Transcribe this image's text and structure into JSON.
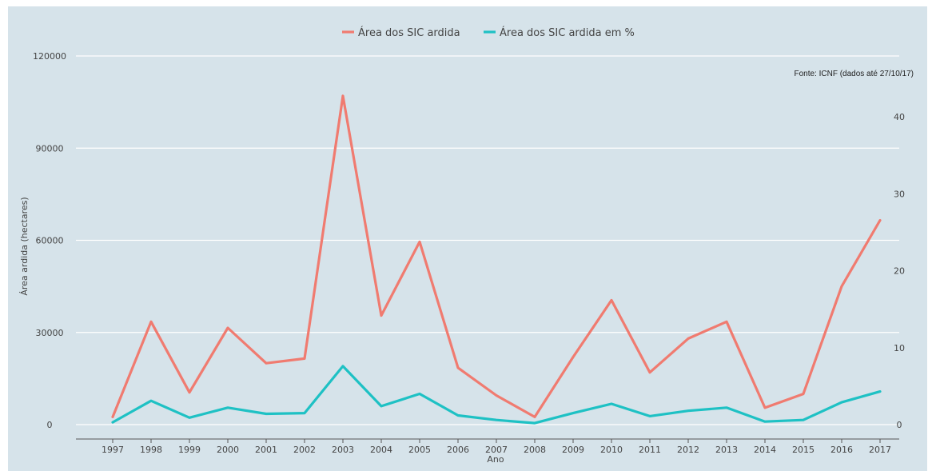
{
  "chart_data": {
    "type": "line",
    "title": "",
    "xlabel": "Ano",
    "ylabel": "Área ardida (hectares)",
    "y2label": "",
    "source_note": "Fonte: ICNF (dados até 27/10/17)",
    "x": [
      "1997",
      "1998",
      "1999",
      "2000",
      "2001",
      "2002",
      "2003",
      "2004",
      "2005",
      "2006",
      "2007",
      "2008",
      "2009",
      "2010",
      "2011",
      "2012",
      "2013",
      "2014",
      "2015",
      "2016",
      "2017"
    ],
    "ylim": [
      0,
      120000
    ],
    "yticks": [
      "0",
      "30000",
      "60000",
      "90000",
      "120000"
    ],
    "y2lim": [
      0,
      48
    ],
    "y2ticks": [
      "0",
      "10",
      "20",
      "30",
      "40"
    ],
    "grid": true,
    "legend_position": "top-center",
    "background": "#d6e3ea",
    "series": [
      {
        "name": "Área dos SIC ardida",
        "axis": "left",
        "color": "#f07b70",
        "values": [
          2500,
          33500,
          10500,
          31500,
          20000,
          21500,
          107000,
          35500,
          59500,
          18500,
          9500,
          2500,
          22000,
          40500,
          17000,
          28000,
          33500,
          5500,
          10000,
          45000,
          66500
        ]
      },
      {
        "name": "Área dos SIC ardida em %",
        "axis": "right",
        "color": "#1ec1c4",
        "values": [
          0.3,
          3.1,
          0.9,
          2.2,
          1.4,
          1.5,
          7.6,
          2.4,
          4.0,
          1.2,
          0.6,
          0.2,
          1.5,
          2.7,
          1.1,
          1.8,
          2.2,
          0.4,
          0.6,
          2.9,
          4.3
        ]
      }
    ]
  }
}
